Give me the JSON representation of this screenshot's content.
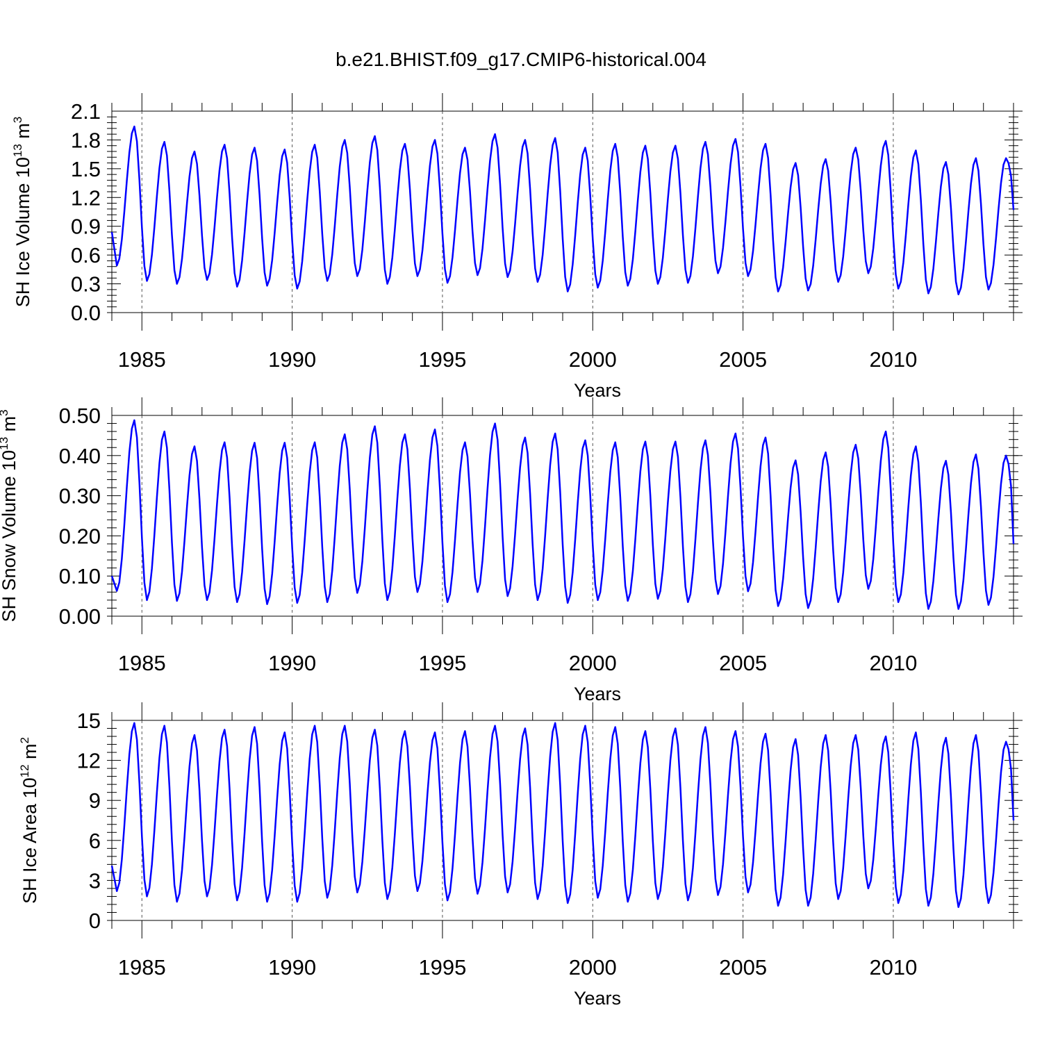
{
  "figure": {
    "title": "b.e21.BHIST.f09_g17.CMIP6-historical.004"
  },
  "chart_data": [
    {
      "type": "line",
      "id": "ice-volume",
      "title": "",
      "xlabel": "Years",
      "ylabel": "SH Ice Volume 10",
      "ylabel_sup": "13",
      "ylabel_unit": "m",
      "ylabel_unit_sup": "3",
      "xlim": [
        1984.0,
        2014.0
      ],
      "ylim": [
        0.0,
        2.1
      ],
      "xticks": [
        1985,
        1990,
        1995,
        2000,
        2005,
        2010
      ],
      "yticks": [
        "0.0",
        "0.3",
        "0.6",
        "0.9",
        "1.2",
        "1.5",
        "1.8",
        "2.1"
      ],
      "line_color": "#0000ff",
      "seasonal_min_month": 2,
      "seasonal_max_month": 9,
      "start_value": 0.84,
      "end_value": 1.07,
      "series": [
        {
          "name": "SH Ice Volume",
          "years": [
            1984,
            1985,
            1986,
            1987,
            1988,
            1989,
            1990,
            1991,
            1992,
            1993,
            1994,
            1995,
            1996,
            1997,
            1998,
            1999,
            2000,
            2001,
            2002,
            2003,
            2004,
            2005,
            2006,
            2007,
            2008,
            2009,
            2010,
            2011,
            2012,
            2013
          ],
          "annual_min": [
            0.49,
            0.33,
            0.3,
            0.34,
            0.27,
            0.28,
            0.25,
            0.33,
            0.38,
            0.3,
            0.38,
            0.31,
            0.39,
            0.37,
            0.32,
            0.22,
            0.26,
            0.28,
            0.3,
            0.31,
            0.41,
            0.38,
            0.22,
            0.23,
            0.32,
            0.41,
            0.25,
            0.2,
            0.19,
            0.24
          ],
          "annual_max": [
            1.94,
            1.78,
            1.68,
            1.75,
            1.72,
            1.7,
            1.75,
            1.8,
            1.84,
            1.76,
            1.8,
            1.72,
            1.86,
            1.8,
            1.82,
            1.72,
            1.76,
            1.74,
            1.74,
            1.78,
            1.81,
            1.76,
            1.56,
            1.6,
            1.72,
            1.79,
            1.69,
            1.57,
            1.61,
            1.61
          ]
        }
      ]
    },
    {
      "type": "line",
      "id": "snow-volume",
      "title": "",
      "xlabel": "Years",
      "ylabel": "SH Snow Volume 10",
      "ylabel_sup": "13",
      "ylabel_unit": "m",
      "ylabel_unit_sup": "3",
      "xlim": [
        1984.0,
        2014.0
      ],
      "ylim": [
        0.0,
        0.5
      ],
      "xticks": [
        1985,
        1990,
        1995,
        2000,
        2005,
        2010
      ],
      "yticks": [
        "0.00",
        "0.10",
        "0.20",
        "0.30",
        "0.40",
        "0.50"
      ],
      "line_color": "#0000ff",
      "seasonal_min_month": 2,
      "seasonal_max_month": 9,
      "start_value": 0.1,
      "end_value": 0.18,
      "series": [
        {
          "name": "SH Snow Volume",
          "years": [
            1984,
            1985,
            1986,
            1987,
            1988,
            1989,
            1990,
            1991,
            1992,
            1993,
            1994,
            1995,
            1996,
            1997,
            1998,
            1999,
            2000,
            2001,
            2002,
            2003,
            2004,
            2005,
            2006,
            2007,
            2008,
            2009,
            2010,
            2011,
            2012,
            2013
          ],
          "annual_min": [
            0.063,
            0.04,
            0.038,
            0.04,
            0.035,
            0.03,
            0.033,
            0.035,
            0.058,
            0.04,
            0.06,
            0.035,
            0.06,
            0.05,
            0.04,
            0.033,
            0.04,
            0.038,
            0.043,
            0.035,
            0.055,
            0.062,
            0.025,
            0.02,
            0.035,
            0.068,
            0.035,
            0.018,
            0.018,
            0.028
          ],
          "annual_max": [
            0.488,
            0.46,
            0.423,
            0.433,
            0.432,
            0.432,
            0.433,
            0.453,
            0.473,
            0.453,
            0.465,
            0.433,
            0.48,
            0.445,
            0.455,
            0.438,
            0.433,
            0.435,
            0.435,
            0.438,
            0.455,
            0.445,
            0.388,
            0.408,
            0.427,
            0.46,
            0.423,
            0.387,
            0.403,
            0.4
          ]
        }
      ]
    },
    {
      "type": "line",
      "id": "ice-area",
      "title": "",
      "xlabel": "Years",
      "ylabel": "SH Ice Area 10",
      "ylabel_sup": "12",
      "ylabel_unit": "m",
      "ylabel_unit_sup": "2",
      "xlim": [
        1984.0,
        2014.0
      ],
      "ylim": [
        0,
        15
      ],
      "xticks": [
        1985,
        1990,
        1995,
        2000,
        2005,
        2010
      ],
      "yticks": [
        "0",
        "3",
        "6",
        "9",
        "12",
        "15"
      ],
      "line_color": "#0000ff",
      "seasonal_min_month": 2,
      "seasonal_max_month": 9,
      "start_value": 4.1,
      "end_value": 7.5,
      "series": [
        {
          "name": "SH Ice Area",
          "years": [
            1984,
            1985,
            1986,
            1987,
            1988,
            1989,
            1990,
            1991,
            1992,
            1993,
            1994,
            1995,
            1996,
            1997,
            1998,
            1999,
            2000,
            2001,
            2002,
            2003,
            2004,
            2005,
            2006,
            2007,
            2008,
            2009,
            2010,
            2011,
            2012,
            2013
          ],
          "annual_min": [
            2.2,
            1.8,
            1.4,
            1.8,
            1.5,
            1.4,
            1.4,
            1.7,
            2.1,
            1.6,
            2.2,
            1.5,
            2.0,
            2.1,
            1.6,
            1.3,
            1.7,
            1.4,
            1.6,
            1.5,
            1.9,
            2.1,
            1.1,
            1.1,
            1.6,
            2.4,
            1.3,
            1.1,
            1.0,
            1.3
          ],
          "annual_max": [
            14.8,
            14.6,
            13.9,
            14.3,
            14.5,
            14.1,
            14.6,
            14.6,
            14.3,
            14.2,
            14.1,
            14.2,
            14.6,
            14.4,
            14.8,
            14.6,
            14.5,
            14.2,
            14.4,
            14.5,
            14.2,
            14.0,
            13.6,
            13.9,
            13.9,
            13.8,
            14.1,
            13.7,
            13.9,
            13.4
          ]
        }
      ]
    }
  ]
}
